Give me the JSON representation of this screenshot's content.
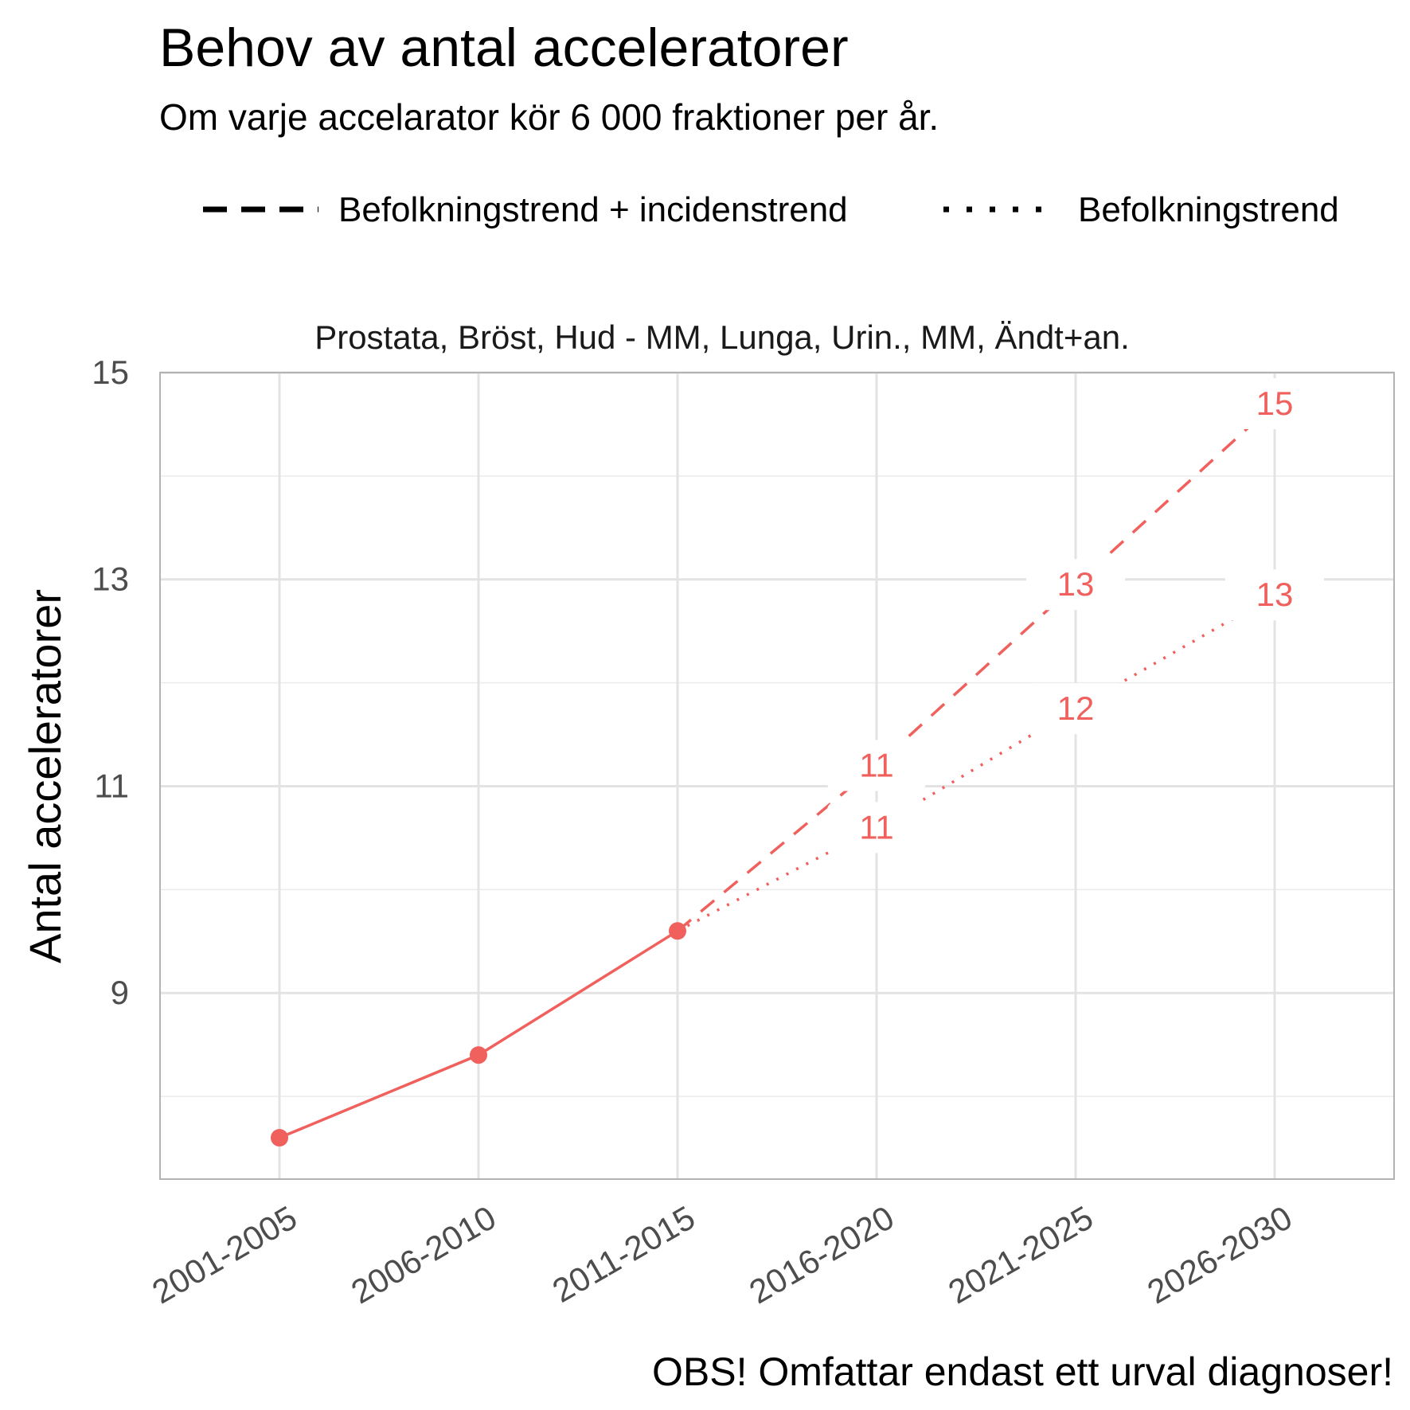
{
  "chart_data": {
    "type": "line",
    "title": "Behov av antal acceleratorer",
    "subtitle": "Om varje accelarator kör 6 000 fraktioner per år.",
    "facet_label": "Prostata, Bröst, Hud - MM, Lunga, Urin., MM, Ändt+an.",
    "xlabel": "",
    "ylabel": "Antal acceleratorer",
    "caption": "OBS! Omfattar endast ett urval diagnoser!",
    "categories": [
      "2001-2005",
      "2006-2010",
      "2011-2015",
      "2016-2020",
      "2021-2025",
      "2026-2030"
    ],
    "ylim": [
      7.2,
      15.0
    ],
    "yticks": [
      9,
      11,
      13,
      15
    ],
    "y_minor_ticks": [
      8,
      10,
      12,
      14
    ],
    "line_color": "#F0605D",
    "legend": {
      "position": "top",
      "entries": [
        {
          "label": "Befolkningstrend + incidenstrend",
          "linetype": "dashed"
        },
        {
          "label": "Befolkningstrend",
          "linetype": "dotted"
        }
      ]
    },
    "series": [
      {
        "name": "Historisk",
        "linetype": "solid",
        "markers": true,
        "points": [
          {
            "x": "2001-2005",
            "y": 7.6
          },
          {
            "x": "2006-2010",
            "y": 8.4
          },
          {
            "x": "2011-2015",
            "y": 9.6
          }
        ]
      },
      {
        "name": "Befolkningstrend + incidenstrend",
        "linetype": "dashed",
        "markers": false,
        "points": [
          {
            "x": "2011-2015",
            "y": 9.6
          },
          {
            "x": "2016-2020",
            "y": 11.2
          },
          {
            "x": "2021-2025",
            "y": 12.95
          },
          {
            "x": "2026-2030",
            "y": 14.7
          }
        ]
      },
      {
        "name": "Befolkningstrend",
        "linetype": "dotted",
        "markers": false,
        "points": [
          {
            "x": "2011-2015",
            "y": 9.6
          },
          {
            "x": "2016-2020",
            "y": 10.6
          },
          {
            "x": "2021-2025",
            "y": 11.75
          },
          {
            "x": "2026-2030",
            "y": 12.85
          }
        ]
      }
    ],
    "data_labels": [
      {
        "series": "Befolkningstrend + incidenstrend",
        "x": "2016-2020",
        "y": 11.2,
        "text": "11"
      },
      {
        "series": "Befolkningstrend + incidenstrend",
        "x": "2021-2025",
        "y": 12.95,
        "text": "13"
      },
      {
        "series": "Befolkningstrend + incidenstrend",
        "x": "2026-2030",
        "y": 14.7,
        "text": "15"
      },
      {
        "series": "Befolkningstrend",
        "x": "2016-2020",
        "y": 10.6,
        "text": "11"
      },
      {
        "series": "Befolkningstrend",
        "x": "2021-2025",
        "y": 11.75,
        "text": "12"
      },
      {
        "series": "Befolkningstrend",
        "x": "2026-2030",
        "y": 12.85,
        "text": "13"
      }
    ]
  }
}
